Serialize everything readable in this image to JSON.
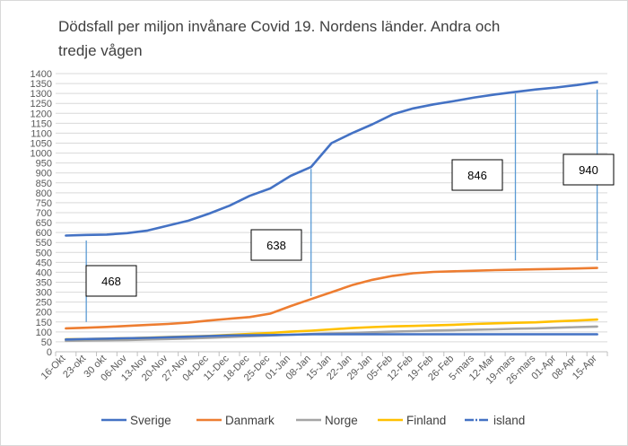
{
  "chart_data": {
    "type": "line",
    "title_line1": "Dödsfall per miljon invånare Covid 19. Nordens länder. Andra och",
    "title_line2": "tredje  vågen",
    "categories": [
      "16-Okt",
      "23-okt",
      "30 okt",
      "06-Nov",
      "13-Nov",
      "20-Nov",
      "27-Nov",
      "04-Dec",
      "11-Dec",
      "18-Dec",
      "25-Dec",
      "01-Jan",
      "08-Jan",
      "15-Jan",
      "22-Jan",
      "29-Jan",
      "05-Feb",
      "12-Feb",
      "19-Feb",
      "26-Feb",
      "5-mars",
      "12-Mar",
      "19-mars",
      "26-mars",
      "01-Apr",
      "08-Apr",
      "15-Apr"
    ],
    "yticks": [
      0,
      50,
      100,
      150,
      200,
      250,
      300,
      350,
      400,
      450,
      500,
      550,
      600,
      650,
      700,
      750,
      800,
      850,
      900,
      950,
      1000,
      1050,
      1100,
      1150,
      1200,
      1250,
      1300,
      1350,
      1400
    ],
    "ylim": [
      0,
      1400
    ],
    "grid": true,
    "legend_position": "bottom",
    "series": [
      {
        "name": "Sverige",
        "color": "#4472C4",
        "values": [
          585,
          588,
          590,
          597,
          610,
          635,
          660,
          695,
          735,
          785,
          822,
          885,
          930,
          1050,
          1100,
          1145,
          1195,
          1225,
          1245,
          1262,
          1280,
          1295,
          1308,
          1320,
          1330,
          1342,
          1357
        ]
      },
      {
        "name": "Danmark",
        "color": "#ED7D31",
        "values": [
          118,
          121,
          125,
          130,
          135,
          140,
          147,
          157,
          166,
          175,
          192,
          230,
          265,
          300,
          335,
          362,
          382,
          395,
          402,
          405,
          408,
          411,
          413,
          415,
          417,
          419,
          422
        ]
      },
      {
        "name": "Norge",
        "color": "#A5A5A5",
        "values": [
          55,
          57,
          58,
          59,
          62,
          64,
          67,
          70,
          74,
          78,
          82,
          86,
          89,
          92,
          95,
          98,
          101,
          104,
          107,
          109,
          111,
          113,
          116,
          118,
          121,
          124,
          127
        ]
      },
      {
        "name": "Finland",
        "color": "#FFC000",
        "values": [
          63,
          64,
          66,
          68,
          71,
          74,
          77,
          80,
          85,
          90,
          95,
          101,
          106,
          113,
          119,
          124,
          128,
          130,
          133,
          136,
          140,
          143,
          146,
          148,
          153,
          157,
          162
        ]
      },
      {
        "name": "island",
        "color": "#4472C4",
        "values": [
          62,
          64,
          66,
          68,
          70,
          73,
          76,
          79,
          82,
          83,
          84,
          86,
          88,
          88,
          88,
          88,
          88,
          88,
          88,
          88,
          88,
          88,
          88,
          88,
          88,
          88,
          88
        ]
      }
    ],
    "annotations": [
      {
        "label": "468",
        "category": "23-okt",
        "from": 150,
        "to": 560
      },
      {
        "label": "638",
        "category": "08-Jan",
        "from": 280,
        "to": 920
      },
      {
        "label": "846",
        "category": "19-mars",
        "from": 460,
        "to": 1300
      },
      {
        "label": "940",
        "category": "15-Apr",
        "from": 460,
        "to": 1320
      }
    ]
  }
}
